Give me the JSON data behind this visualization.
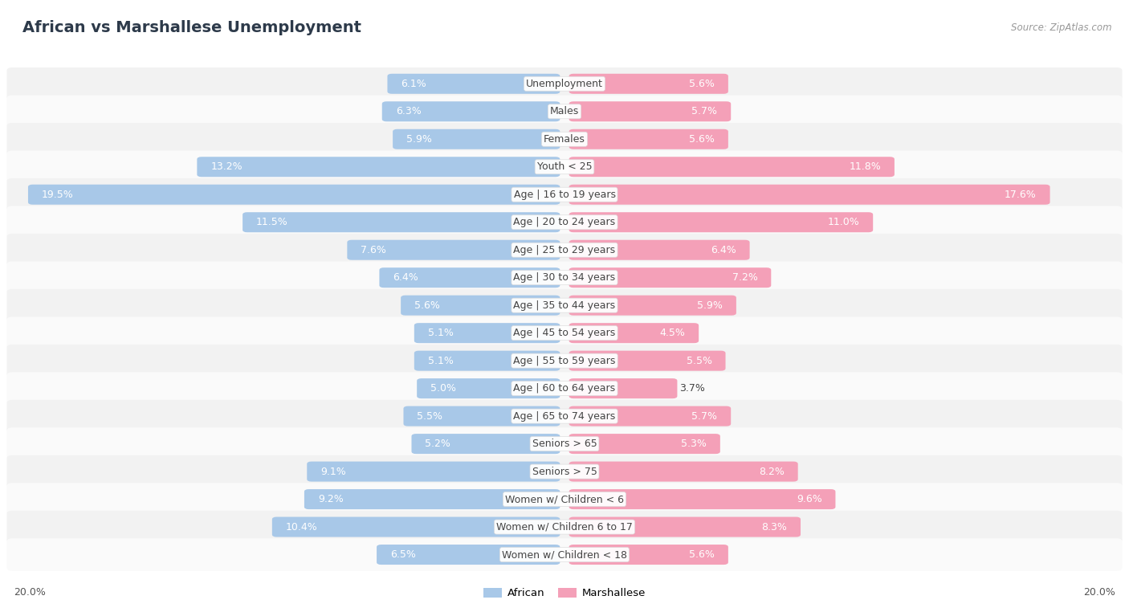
{
  "title": "African vs Marshallese Unemployment",
  "source": "Source: ZipAtlas.com",
  "categories": [
    "Unemployment",
    "Males",
    "Females",
    "Youth < 25",
    "Age | 16 to 19 years",
    "Age | 20 to 24 years",
    "Age | 25 to 29 years",
    "Age | 30 to 34 years",
    "Age | 35 to 44 years",
    "Age | 45 to 54 years",
    "Age | 55 to 59 years",
    "Age | 60 to 64 years",
    "Age | 65 to 74 years",
    "Seniors > 65",
    "Seniors > 75",
    "Women w/ Children < 6",
    "Women w/ Children 6 to 17",
    "Women w/ Children < 18"
  ],
  "african": [
    6.1,
    6.3,
    5.9,
    13.2,
    19.5,
    11.5,
    7.6,
    6.4,
    5.6,
    5.1,
    5.1,
    5.0,
    5.5,
    5.2,
    9.1,
    9.2,
    10.4,
    6.5
  ],
  "marshallese": [
    5.6,
    5.7,
    5.6,
    11.8,
    17.6,
    11.0,
    6.4,
    7.2,
    5.9,
    4.5,
    5.5,
    3.7,
    5.7,
    5.3,
    8.2,
    9.6,
    8.3,
    5.6
  ],
  "african_color": "#a8c8e8",
  "marshallese_color": "#f4a0b8",
  "african_color_dark": "#7aade0",
  "marshallese_color_dark": "#f07090",
  "max_val": 20.0,
  "bg_color": "#ffffff",
  "row_bg_even": "#f2f2f2",
  "row_bg_odd": "#fafafa",
  "title_fontsize": 14,
  "label_fontsize": 9,
  "value_fontsize": 9
}
